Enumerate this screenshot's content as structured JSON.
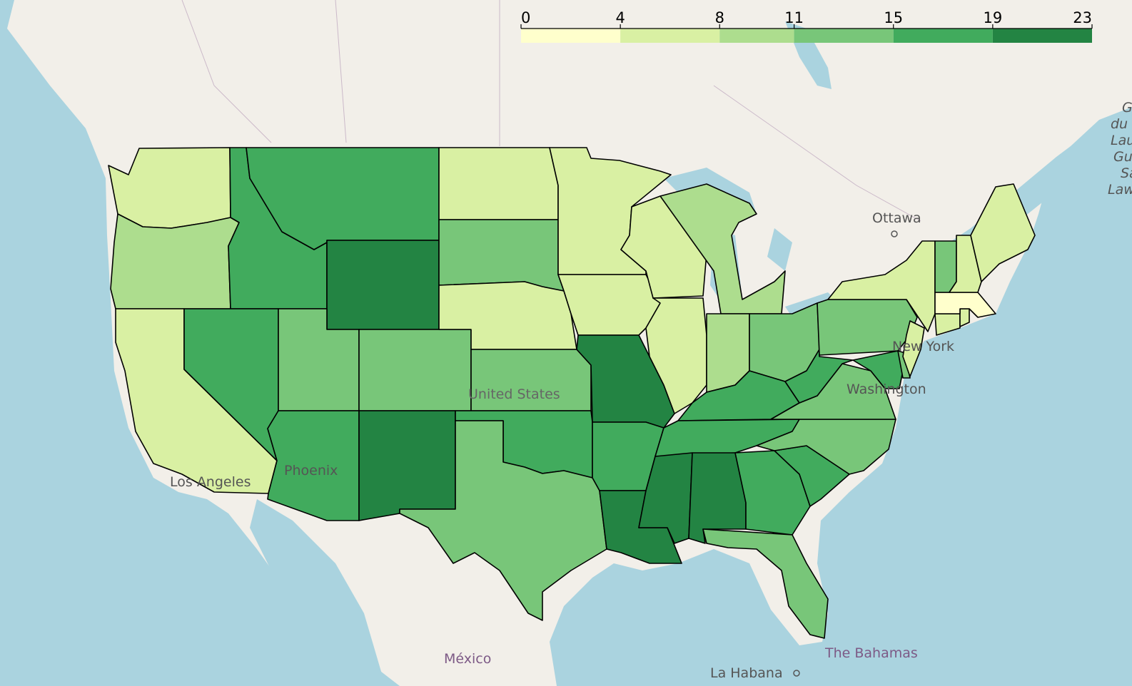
{
  "map": {
    "place_labels": {
      "ottawa": "Ottawa",
      "new_york": "New York",
      "washington": "Washington",
      "united_states": "United States",
      "phoenix": "Phoenix",
      "los_angeles": "Los Angeles",
      "mexico": "México",
      "la_habana": "La Habana",
      "bahamas": "The Bahamas",
      "gulf_lines": [
        "Go",
        "du S",
        "Lau",
        "Gu",
        "Sa",
        "Law"
      ]
    },
    "colors": {
      "water": "#aad3df",
      "land": "#f2efe9",
      "scale": [
        "#ffffcc",
        "#d9f0a3",
        "#addd8e",
        "#78c679",
        "#41ab5d",
        "#238443"
      ]
    }
  },
  "legend": {
    "ticks": [
      "0",
      "4",
      "8",
      "11",
      "15",
      "19",
      "23"
    ],
    "min": 0,
    "max": 23
  },
  "chart_data": {
    "type": "choropleth",
    "color_scale": {
      "min": 0,
      "max": 23,
      "ticks": [
        0,
        4,
        8,
        11,
        15,
        19,
        23
      ]
    },
    "states": {
      "WA": 7,
      "OR": 9,
      "CA": 5,
      "ID": 16,
      "NV": 16,
      "MT": 16,
      "WY": 21,
      "UT": 11,
      "AZ": 16,
      "CO": 11,
      "NM": 21,
      "ND": 7,
      "SD": 11,
      "NE": 7,
      "KS": 11,
      "OK": 16,
      "TX": 11,
      "MN": 7,
      "IA": 7,
      "MO": 21,
      "AR": 16,
      "LA": 21,
      "WI": 7,
      "IL": 7,
      "MI": 9,
      "IN": 9,
      "OH": 11,
      "KY": 16,
      "TN": 16,
      "MS": 21,
      "AL": 21,
      "GA": 16,
      "FL": 11,
      "SC": 16,
      "NC": 11,
      "VA": 11,
      "WV": 16,
      "PA": 11,
      "NY": 5,
      "VT": 11,
      "NH": 7,
      "ME": 7,
      "MA": 2,
      "CT": 5,
      "RI": 5,
      "NJ": 5,
      "DE": 11,
      "MD": 16
    }
  }
}
